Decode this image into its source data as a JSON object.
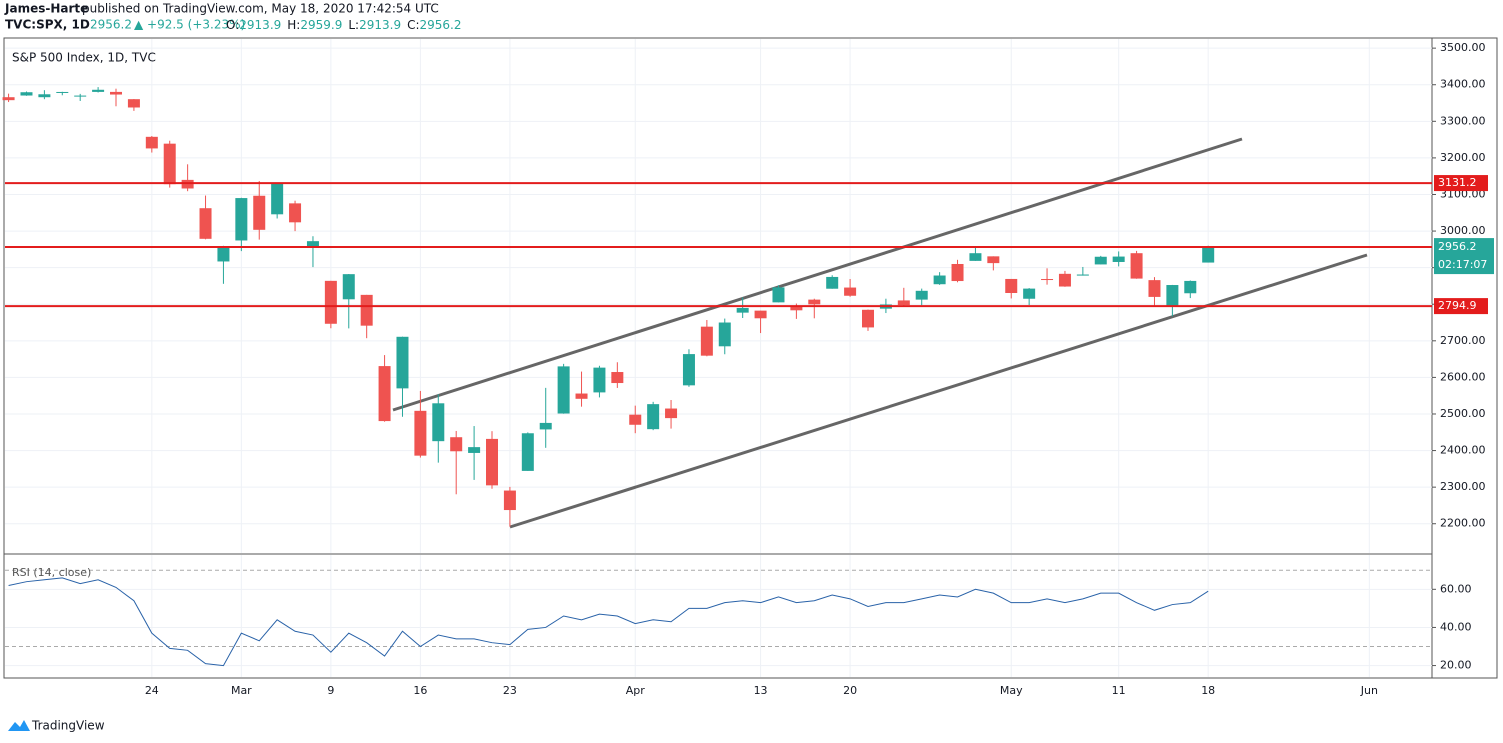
{
  "header": {
    "author": "James-Harte",
    "published": "published on TradingView.com, May 18, 2020 17:42:54 UTC",
    "symbol": "TVC:SPX, 1D",
    "price": "2956.2",
    "change": "▲ +92.5 (+3.23%)",
    "ohlc": [
      {
        "key": "O:",
        "value": "2913.9"
      },
      {
        "key": "H:",
        "value": "2959.9"
      },
      {
        "key": "L:",
        "value": "2913.9"
      },
      {
        "key": "C:",
        "value": "2956.2"
      }
    ]
  },
  "footer": {
    "brand": "TradingView"
  },
  "chart_data": [
    {
      "type": "candlestick",
      "title": "S&P 500 Index, 1D, TVC",
      "up_color": "#26a69a",
      "down_color": "#ef5350",
      "grid": true,
      "open": [
        3365.9,
        3370.5,
        3365.9,
        3378.1,
        3369.0,
        3380.4,
        3380.4,
        3360.5,
        3257.6,
        3238.9,
        3139.9,
        3062.5,
        2916.9,
        2974.3,
        3096.5,
        3045.8,
        3075.7,
        2954.2,
        2863.9,
        2813.5,
        2825.6,
        2630.9,
        2570.0,
        2508.6,
        2425.7,
        2436.5,
        2393.5,
        2431.9,
        2290.7,
        2344.4,
        2457.8,
        2501.3,
        2555.9,
        2559.0,
        2614.7,
        2498.1,
        2458.5,
        2514.9,
        2578.3,
        2738.7,
        2685.0,
        2777.0,
        2782.5,
        2805.1,
        2795.6,
        2812.6,
        2842.4,
        2845.6,
        2784.8,
        2787.9,
        2810.4,
        2812.6,
        2854.7,
        2910.0,
        2918.5,
        2930.9,
        2869.1,
        2815.0,
        2868.9,
        2883.1,
        2878.3,
        2908.8,
        2915.5,
        2939.5,
        2865.9,
        2794.5,
        2830.0,
        2913.9
      ],
      "high": [
        3375.6,
        3381.5,
        3385.1,
        3380.7,
        3375.0,
        3393.5,
        3389.2,
        3360.8,
        3259.8,
        3247.0,
        3182.5,
        3097.1,
        2959.7,
        3091.0,
        3136.7,
        3130.9,
        3083.0,
        2985.9,
        2863.9,
        2882.6,
        2825.6,
        2661.0,
        2711.3,
        2563.0,
        2553.9,
        2453.6,
        2467.0,
        2453.0,
        2300.7,
        2449.7,
        2571.4,
        2637.0,
        2615.9,
        2631.8,
        2641.4,
        2522.8,
        2533.2,
        2538.2,
        2676.9,
        2756.9,
        2760.8,
        2818.6,
        2782.5,
        2851.9,
        2801.9,
        2815.1,
        2879.2,
        2869.0,
        2785.5,
        2815.1,
        2844.9,
        2842.7,
        2887.7,
        2921.4,
        2954.9,
        2930.9,
        2869.1,
        2844.2,
        2898.2,
        2891.1,
        2901.9,
        2932.2,
        2944.3,
        2945.8,
        2874.1,
        2852.8,
        2865.0,
        2959.9
      ],
      "low": [
        3352.7,
        3369.7,
        3360.5,
        3371.2,
        3355.6,
        3378.8,
        3341.1,
        3328.5,
        3214.6,
        3118.8,
        3109.0,
        2977.4,
        2855.8,
        2945.2,
        2976.6,
        3034.4,
        2999.8,
        2901.5,
        2734.4,
        2734.0,
        2707.2,
        2478.9,
        2492.4,
        2380.9,
        2367.0,
        2280.5,
        2319.8,
        2295.6,
        2191.9,
        2344.4,
        2407.5,
        2500.7,
        2520.0,
        2545.3,
        2571.2,
        2447.5,
        2455.8,
        2460.0,
        2574.2,
        2657.7,
        2663.3,
        2762.4,
        2721.2,
        2805.1,
        2759.9,
        2761.5,
        2842.4,
        2820.4,
        2727.1,
        2775.9,
        2794.3,
        2797.2,
        2852.9,
        2860.0,
        2918.5,
        2892.5,
        2815.8,
        2797.9,
        2853.5,
        2847.6,
        2878.3,
        2908.8,
        2903.4,
        2869.6,
        2793.2,
        2766.6,
        2816.8,
        2913.9
      ],
      "close": [
        3357.8,
        3379.5,
        3373.9,
        3380.2,
        3370.3,
        3386.2,
        3373.2,
        3337.8,
        3225.9,
        3128.2,
        3116.4,
        2978.8,
        2954.2,
        3090.2,
        3003.4,
        3130.1,
        3023.9,
        2972.4,
        2746.6,
        2882.2,
        2741.4,
        2480.6,
        2711.0,
        2386.1,
        2529.2,
        2398.1,
        2409.4,
        2304.9,
        2237.4,
        2447.3,
        2475.6,
        2630.1,
        2541.5,
        2626.7,
        2584.6,
        2470.5,
        2526.9,
        2488.7,
        2663.7,
        2659.4,
        2750.0,
        2789.8,
        2761.6,
        2846.1,
        2783.4,
        2799.6,
        2874.6,
        2823.2,
        2736.6,
        2799.3,
        2797.8,
        2836.7,
        2878.5,
        2863.4,
        2939.5,
        2912.4,
        2830.7,
        2842.7,
        2868.4,
        2848.4,
        2881.2,
        2929.8,
        2930.3,
        2870.1,
        2820.0,
        2852.5,
        2863.7,
        2956.2
      ],
      "xlim": [
        -0.2,
        79.5
      ],
      "ylim": [
        2120,
        3525
      ],
      "yticks": [
        {
          "value": 2200,
          "label": "2200.00"
        },
        {
          "value": 2300,
          "label": "2300.00"
        },
        {
          "value": 2400,
          "label": "2400.00"
        },
        {
          "value": 2500,
          "label": "2500.00"
        },
        {
          "value": 2600,
          "label": "2600.00"
        },
        {
          "value": 2700,
          "label": "2700.00"
        },
        {
          "value": 2800,
          "label": "2800.00"
        },
        {
          "value": 2900,
          "label": "2900.00"
        },
        {
          "value": 3000,
          "label": "3000.00"
        },
        {
          "value": 3100,
          "label": "3100.00"
        },
        {
          "value": 3200,
          "label": "3200.00"
        },
        {
          "value": 3300,
          "label": "3300.00"
        },
        {
          "value": 3400,
          "label": "3400.00"
        },
        {
          "value": 3500,
          "label": "3500.00"
        }
      ],
      "levels": [
        {
          "value": 3131.2,
          "color": "#e31c1c"
        },
        {
          "value": 2956.4,
          "color": "#e31c1c"
        },
        {
          "value": 2794.9,
          "color": "#e31c1c"
        }
      ],
      "countdown": "02:17:07",
      "xticks": [
        {
          "value": 8,
          "label": "24"
        },
        {
          "value": 13,
          "label": "Mar"
        },
        {
          "value": 18,
          "label": "9"
        },
        {
          "value": 23,
          "label": "16"
        },
        {
          "value": 28,
          "label": "23"
        },
        {
          "value": 35,
          "label": "Apr"
        },
        {
          "value": 42,
          "label": "13"
        },
        {
          "value": 47,
          "label": "20"
        },
        {
          "value": 56,
          "label": "May"
        },
        {
          "value": 62,
          "label": "11"
        },
        {
          "value": 67,
          "label": "18"
        },
        {
          "value": 76,
          "label": "Jun"
        }
      ]
    },
    {
      "type": "line",
      "title": "RSI (14, close)",
      "color": "#2962a8",
      "values": [
        62,
        64,
        65,
        66,
        63,
        65,
        61,
        54,
        37,
        29,
        28,
        21,
        20,
        37,
        33,
        44,
        38,
        36,
        27,
        37,
        32,
        25,
        38,
        30,
        36,
        34,
        34,
        32,
        31,
        39,
        40,
        46,
        44,
        47,
        46,
        42,
        44,
        43,
        50,
        50,
        53,
        54,
        53,
        56,
        53,
        54,
        57,
        55,
        51,
        53,
        53,
        55,
        57,
        56,
        60,
        58,
        53,
        53,
        55,
        53,
        55,
        58,
        58,
        53,
        49,
        52,
        53,
        59
      ],
      "ylim": [
        14,
        78
      ],
      "bands": [
        30,
        70
      ],
      "yticks": [
        {
          "value": 20,
          "label": "20.00"
        },
        {
          "value": 40,
          "label": "40.00"
        },
        {
          "value": 60,
          "label": "60.00"
        }
      ]
    }
  ]
}
